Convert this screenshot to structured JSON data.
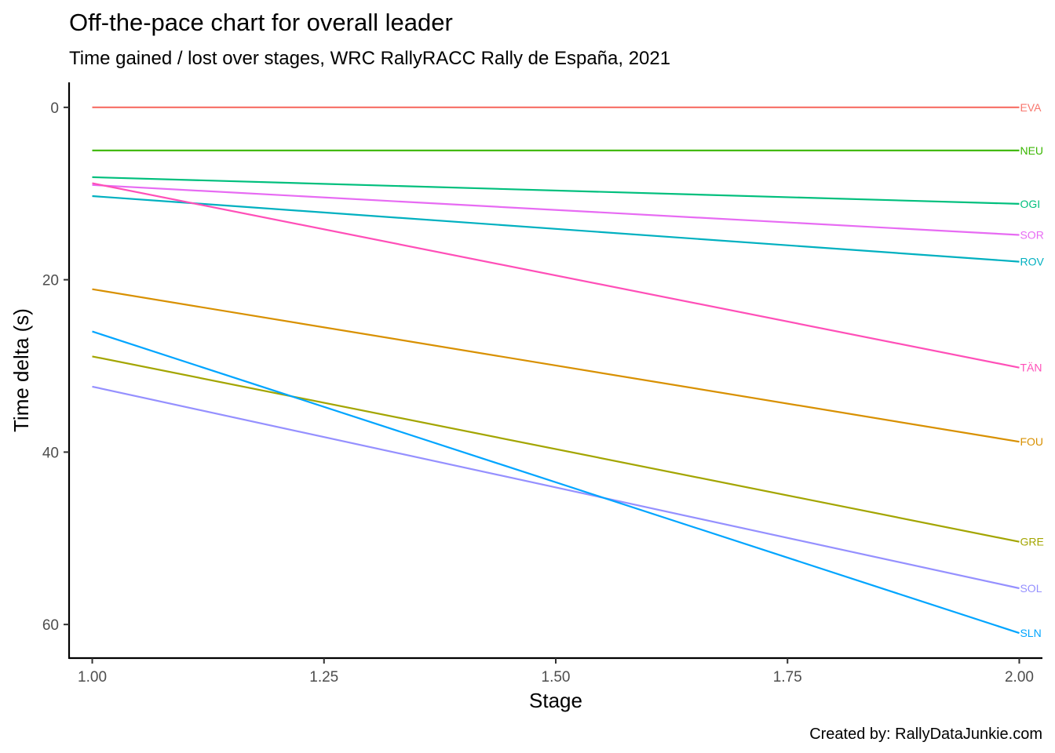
{
  "chart_data": {
    "type": "line",
    "title": "Off-the-pace chart for overall leader",
    "subtitle": "Time gained / lost over stages, WRC RallyRACC Rally de España, 2021",
    "xlabel": "Stage",
    "ylabel": "Time delta (s)",
    "caption": "Created by: RallyDataJunkie.com",
    "xlim": [
      0.975,
      2.025
    ],
    "ylim": [
      -2.9,
      63.9
    ],
    "y_reversed": true,
    "x_ticks": [
      1.0,
      1.25,
      1.5,
      1.75,
      2.0
    ],
    "x_tick_labels": [
      "1.00",
      "1.25",
      "1.50",
      "1.75",
      "2.00"
    ],
    "y_ticks": [
      0,
      20,
      40,
      60
    ],
    "y_tick_labels": [
      "0",
      "20",
      "40",
      "60"
    ],
    "grid": false,
    "legend": "none",
    "x": [
      1,
      2
    ],
    "series": [
      {
        "name": "EVA",
        "color": "#F8766D",
        "values": [
          0.0,
          0.0
        ]
      },
      {
        "name": "NEU",
        "color": "#39B600",
        "values": [
          5.0,
          5.0
        ]
      },
      {
        "name": "OGI",
        "color": "#00BF7D",
        "values": [
          8.1,
          11.2
        ]
      },
      {
        "name": "SOR",
        "color": "#E76BF3",
        "values": [
          9.0,
          14.8
        ]
      },
      {
        "name": "ROV",
        "color": "#00B0C0",
        "values": [
          10.3,
          17.9
        ]
      },
      {
        "name": "TÄN",
        "color": "#FF4FB8",
        "values": [
          8.8,
          30.2
        ]
      },
      {
        "name": "FOU",
        "color": "#D89000",
        "values": [
          21.1,
          38.8
        ]
      },
      {
        "name": "GRE",
        "color": "#A3A500",
        "values": [
          28.9,
          50.4
        ]
      },
      {
        "name": "SOL",
        "color": "#9590FF",
        "values": [
          32.4,
          55.8
        ]
      },
      {
        "name": "SLN",
        "color": "#00A5FF",
        "values": [
          26.0,
          61.0
        ]
      }
    ]
  }
}
